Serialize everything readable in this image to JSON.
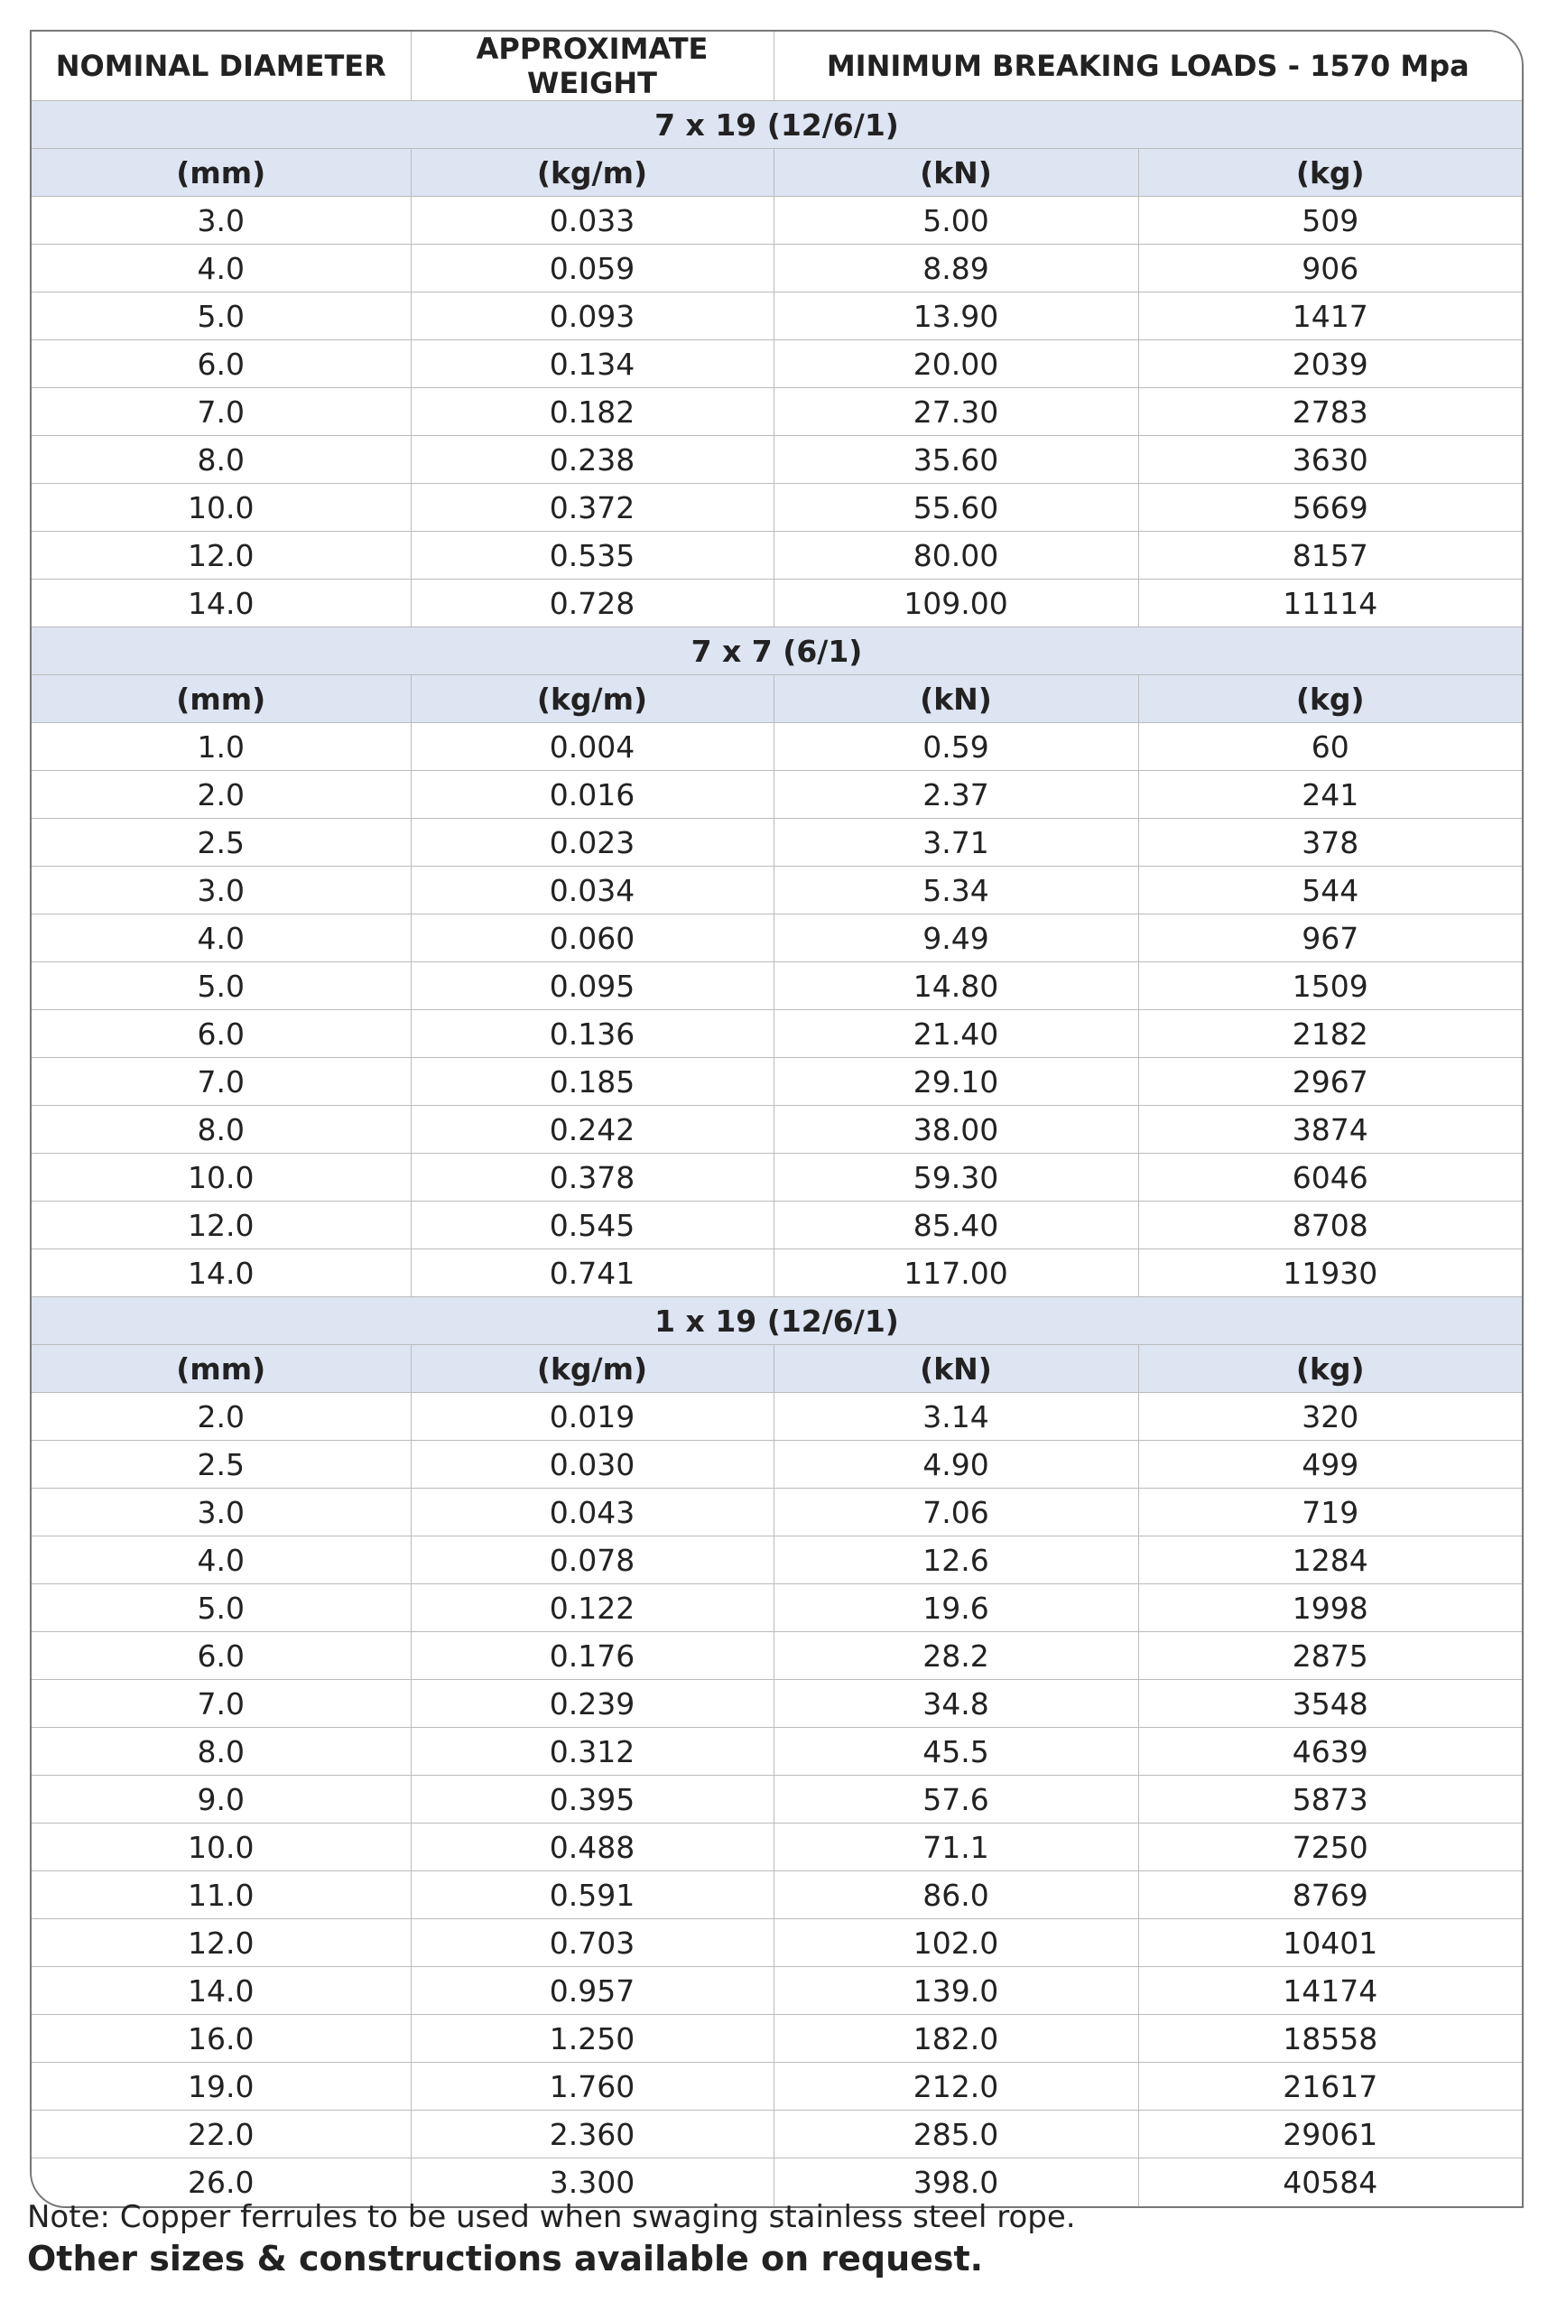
{
  "table": {
    "header": [
      "NOMINAL DIAMETER",
      "APPROXIMATE WEIGHT",
      "MINIMUM BREAKING LOADS - 1570 Mpa"
    ],
    "sections": [
      {
        "title": "7 x 19 (12/6/1)",
        "units": [
          "(mm)",
          "(kg/m)",
          "(kN)",
          "(kg)"
        ],
        "rows": [
          [
            "3.0",
            "0.033",
            "5.00",
            "509"
          ],
          [
            "4.0",
            "0.059",
            "8.89",
            "906"
          ],
          [
            "5.0",
            "0.093",
            "13.90",
            "1417"
          ],
          [
            "6.0",
            "0.134",
            "20.00",
            "2039"
          ],
          [
            "7.0",
            "0.182",
            "27.30",
            "2783"
          ],
          [
            "8.0",
            "0.238",
            "35.60",
            "3630"
          ],
          [
            "10.0",
            "0.372",
            "55.60",
            "5669"
          ],
          [
            "12.0",
            "0.535",
            "80.00",
            "8157"
          ],
          [
            "14.0",
            "0.728",
            "109.00",
            "11114"
          ]
        ]
      },
      {
        "title": "7 x 7 (6/1)",
        "units": [
          "(mm)",
          "(kg/m)",
          "(kN)",
          "(kg)"
        ],
        "rows": [
          [
            "1.0",
            "0.004",
            "0.59",
            "60"
          ],
          [
            "2.0",
            "0.016",
            "2.37",
            "241"
          ],
          [
            "2.5",
            "0.023",
            "3.71",
            "378"
          ],
          [
            "3.0",
            "0.034",
            "5.34",
            "544"
          ],
          [
            "4.0",
            "0.060",
            "9.49",
            "967"
          ],
          [
            "5.0",
            "0.095",
            "14.80",
            "1509"
          ],
          [
            "6.0",
            "0.136",
            "21.40",
            "2182"
          ],
          [
            "7.0",
            "0.185",
            "29.10",
            "2967"
          ],
          [
            "8.0",
            "0.242",
            "38.00",
            "3874"
          ],
          [
            "10.0",
            "0.378",
            "59.30",
            "6046"
          ],
          [
            "12.0",
            "0.545",
            "85.40",
            "8708"
          ],
          [
            "14.0",
            "0.741",
            "117.00",
            "11930"
          ]
        ]
      },
      {
        "title": "1 x 19 (12/6/1)",
        "units": [
          "(mm)",
          "(kg/m)",
          "(kN)",
          "(kg)"
        ],
        "rows": [
          [
            "2.0",
            "0.019",
            "3.14",
            "320"
          ],
          [
            "2.5",
            "0.030",
            "4.90",
            "499"
          ],
          [
            "3.0",
            "0.043",
            "7.06",
            "719"
          ],
          [
            "4.0",
            "0.078",
            "12.6",
            "1284"
          ],
          [
            "5.0",
            "0.122",
            "19.6",
            "1998"
          ],
          [
            "6.0",
            "0.176",
            "28.2",
            "2875"
          ],
          [
            "7.0",
            "0.239",
            "34.8",
            "3548"
          ],
          [
            "8.0",
            "0.312",
            "45.5",
            "4639"
          ],
          [
            "9.0",
            "0.395",
            "57.6",
            "5873"
          ],
          [
            "10.0",
            "0.488",
            "71.1",
            "7250"
          ],
          [
            "11.0",
            "0.591",
            "86.0",
            "8769"
          ],
          [
            "12.0",
            "0.703",
            "102.0",
            "10401"
          ],
          [
            "14.0",
            "0.957",
            "139.0",
            "14174"
          ],
          [
            "16.0",
            "1.250",
            "182.0",
            "18558"
          ],
          [
            "19.0",
            "1.760",
            "212.0",
            "21617"
          ],
          [
            "22.0",
            "2.360",
            "285.0",
            "29061"
          ],
          [
            "26.0",
            "3.300",
            "398.0",
            "40584"
          ]
        ]
      }
    ]
  },
  "notes": {
    "note": "Note: Copper ferrules to be used when swaging stainless steel rope.",
    "emphasis": "Other sizes & constructions available on request."
  }
}
